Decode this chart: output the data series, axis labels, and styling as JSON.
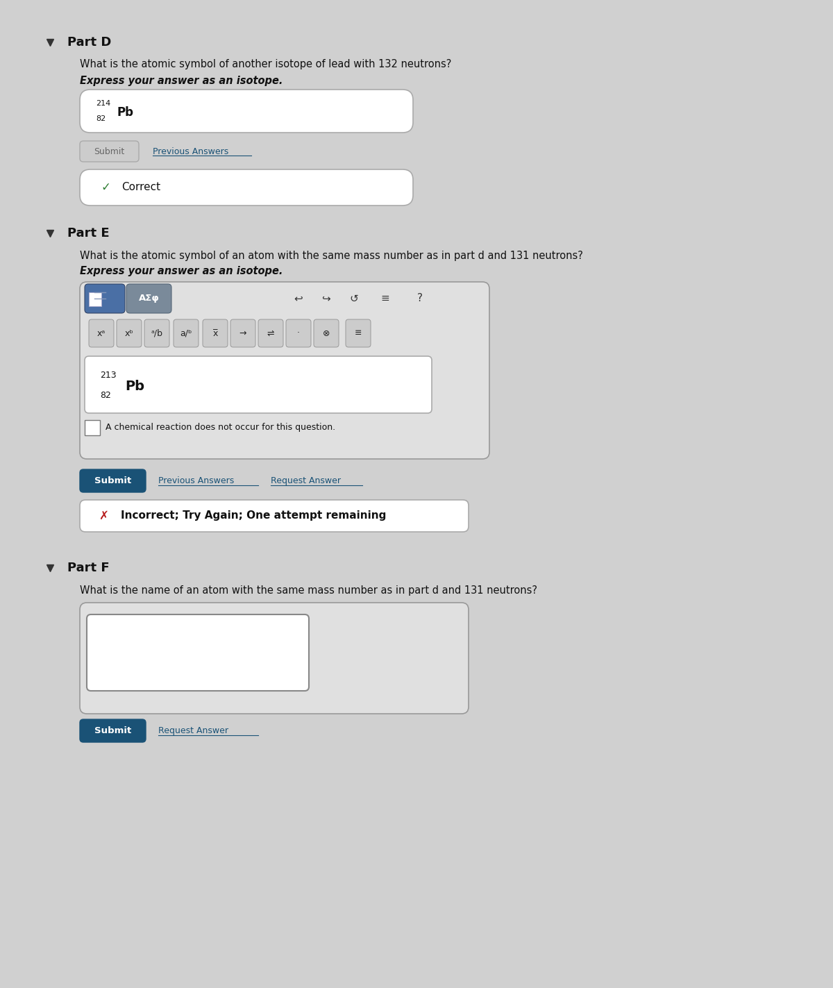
{
  "bg_color": "#c8c8c8",
  "page_bg": "#d0d0d0",
  "white": "#ffffff",
  "part_d_header": "Part D",
  "part_d_q1": "What is the atomic symbol of another isotope of lead with 132 neutrons?",
  "part_d_q2": "Express your answer as an isotope.",
  "part_d_answer_mass": "214",
  "part_d_answer_atomic": "82",
  "part_d_answer_symbol": "Pb",
  "correct_color": "#2e7d32",
  "correct_text": "Correct",
  "part_e_header": "Part E",
  "part_e_q1": "What is the atomic symbol of an atom with the same mass number as in part d and 131 neutrons?",
  "part_e_q2": "Express your answer as an isotope.",
  "part_e_answer_mass": "213",
  "part_e_answer_atomic": "82",
  "part_e_answer_symbol": "Pb",
  "toolbar_bg": "#4a6fa5",
  "incorrect_color": "#b71c1c",
  "incorrect_text": "Incorrect; Try Again; One attempt remaining",
  "chemical_reaction_text": "A chemical reaction does not occur for this question.",
  "part_f_header": "Part F",
  "part_f_q1": "What is the name of an atom with the same mass number as in part d and 131 neutrons?",
  "submit_btn_color": "#1a5276",
  "submit_btn_text_color": "#ffffff",
  "link_color": "#1a5276",
  "arrow_color": "#333333"
}
